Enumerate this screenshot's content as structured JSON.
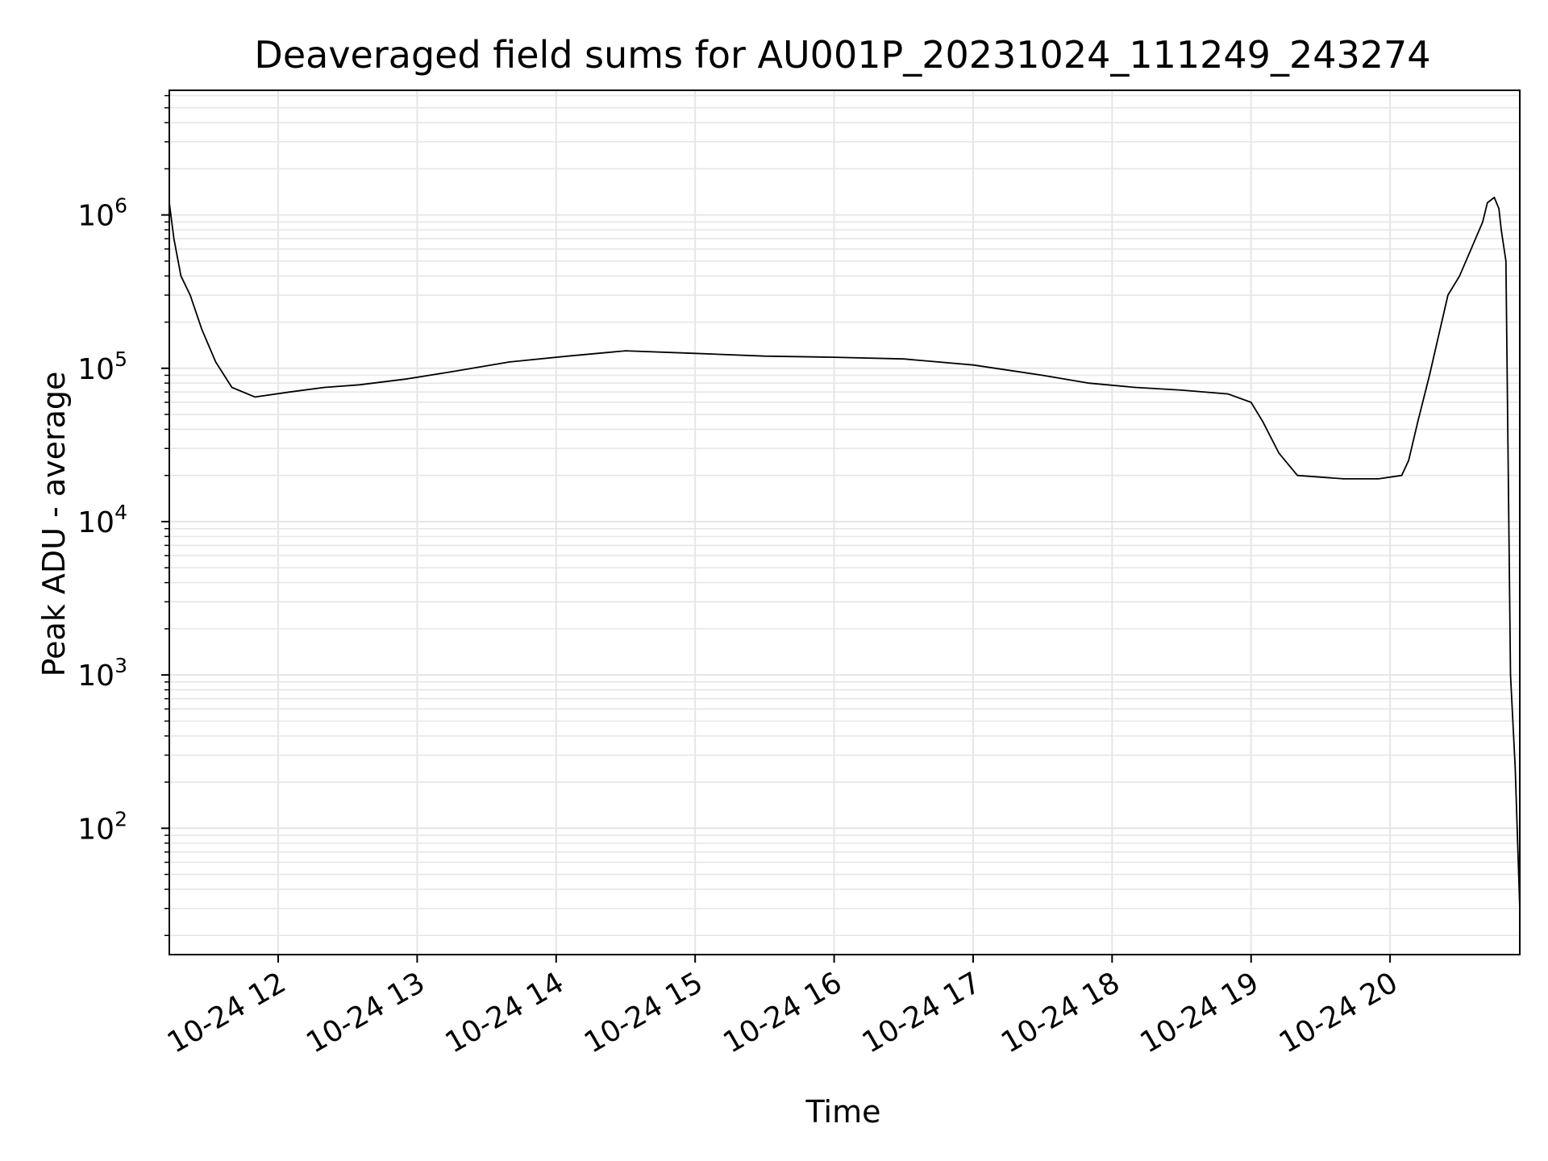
{
  "chart_data": {
    "type": "line",
    "title": "Deaveraged field sums for AU001P_20231024_111249_243274",
    "xlabel": "Time",
    "ylabel": "Peak ADU - average",
    "yscale": "log",
    "ylim": [
      15,
      6500000
    ],
    "xlim": [
      "2023-10-24 11:13",
      "2023-10-24 20:56"
    ],
    "grid": true,
    "line_color": "#000000",
    "grid_color": "#e6e6e6",
    "x_ticks": [
      {
        "value": "2023-10-24 12:00",
        "label": "10-24 12"
      },
      {
        "value": "2023-10-24 13:00",
        "label": "10-24 13"
      },
      {
        "value": "2023-10-24 14:00",
        "label": "10-24 14"
      },
      {
        "value": "2023-10-24 15:00",
        "label": "10-24 15"
      },
      {
        "value": "2023-10-24 16:00",
        "label": "10-24 16"
      },
      {
        "value": "2023-10-24 17:00",
        "label": "10-24 17"
      },
      {
        "value": "2023-10-24 18:00",
        "label": "10-24 18"
      },
      {
        "value": "2023-10-24 19:00",
        "label": "10-24 19"
      },
      {
        "value": "2023-10-24 20:00",
        "label": "10-24 20"
      }
    ],
    "y_ticks": [
      {
        "value": 100,
        "base": "10",
        "exp": "2"
      },
      {
        "value": 1000,
        "base": "10",
        "exp": "3"
      },
      {
        "value": 10000,
        "base": "10",
        "exp": "4"
      },
      {
        "value": 100000,
        "base": "10",
        "exp": "5"
      },
      {
        "value": 1000000,
        "base": "10",
        "exp": "6"
      }
    ],
    "series": [
      {
        "x": [
          "2023-10-24 11:13",
          "2023-10-24 11:15",
          "2023-10-24 11:18",
          "2023-10-24 11:22",
          "2023-10-24 11:27",
          "2023-10-24 11:33",
          "2023-10-24 11:40",
          "2023-10-24 11:50",
          "2023-10-24 12:05",
          "2023-10-24 12:20",
          "2023-10-24 12:35",
          "2023-10-24 12:55",
          "2023-10-24 13:15",
          "2023-10-24 13:40",
          "2023-10-24 14:05",
          "2023-10-24 14:30",
          "2023-10-24 15:00",
          "2023-10-24 15:30",
          "2023-10-24 16:00",
          "2023-10-24 16:30",
          "2023-10-24 17:00",
          "2023-10-24 17:30",
          "2023-10-24 17:50",
          "2023-10-24 18:10",
          "2023-10-24 18:30",
          "2023-10-24 18:50",
          "2023-10-24 19:00",
          "2023-10-24 19:05",
          "2023-10-24 19:12",
          "2023-10-24 19:20",
          "2023-10-24 19:40",
          "2023-10-24 19:55",
          "2023-10-24 20:05",
          "2023-10-24 20:08",
          "2023-10-24 20:12",
          "2023-10-24 20:17",
          "2023-10-24 20:25",
          "2023-10-24 20:30",
          "2023-10-24 20:35",
          "2023-10-24 20:40",
          "2023-10-24 20:42",
          "2023-10-24 20:45",
          "2023-10-24 20:47",
          "2023-10-24 20:48",
          "2023-10-24 20:50",
          "2023-10-24 20:52",
          "2023-10-24 20:54",
          "2023-10-24 20:56"
        ],
        "y": [
          1200000,
          700000,
          400000,
          300000,
          180000,
          110000,
          75000,
          65000,
          70000,
          75000,
          78000,
          85000,
          95000,
          110000,
          120000,
          130000,
          125000,
          120000,
          118000,
          115000,
          105000,
          90000,
          80000,
          75000,
          72000,
          68000,
          60000,
          45000,
          28000,
          20000,
          19000,
          19000,
          20000,
          25000,
          45000,
          90000,
          300000,
          400000,
          600000,
          900000,
          1200000,
          1300000,
          1100000,
          800000,
          500000,
          1000,
          250,
          30
        ]
      }
    ]
  }
}
